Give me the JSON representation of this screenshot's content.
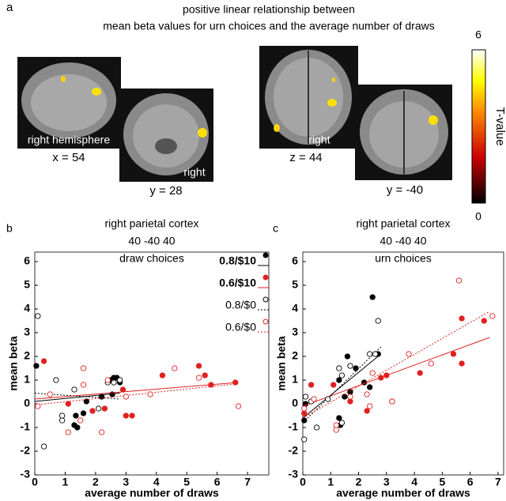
{
  "figure_a": {
    "label": "a",
    "title": [
      "positive linear relationship between",
      "mean beta values for urn choices and the average number of draws"
    ],
    "image_labels": {
      "sagittal_side": "right hemisphere",
      "sagittal_coord": "x = 54",
      "coronal1_side": "right",
      "coronal1_coord": "y = 28",
      "axial_side": "right",
      "axial_coord": "z = 44",
      "coronal2_coord": "y = -40"
    },
    "colorbar": {
      "label": "T-value",
      "lim": [
        0,
        6
      ],
      "ticks": [
        0,
        6
      ]
    }
  },
  "chart_data": [
    {
      "type": "scatter",
      "panel": "b",
      "title": [
        "right parietal cortex",
        "40 -40 40",
        "draw choices"
      ],
      "xlabel": "average number of draws",
      "ylabel": "mean beta",
      "xlim": [
        0,
        7.7
      ],
      "ylim": [
        -3,
        6.4
      ],
      "xticks": [
        0,
        1,
        2,
        3,
        4,
        5,
        6,
        7
      ],
      "yticks": [
        -3,
        -2,
        -1,
        0,
        1,
        2,
        3,
        4,
        5,
        6
      ],
      "legend": "upper right",
      "series": [
        {
          "name": "0.8/$10",
          "color": "#000000",
          "marker": "filled",
          "line": "solid",
          "x": [
            0.05,
            1.3,
            1.35,
            1.4,
            1.6,
            1.7,
            2.2,
            2.5,
            2.6,
            2.7,
            2.8,
            2.55
          ],
          "values": [
            1.6,
            -0.9,
            -0.5,
            -1.0,
            -0.4,
            0.1,
            0.3,
            1.0,
            1.1,
            1.1,
            0.9,
            0.4
          ],
          "fit": {
            "x": [
              0,
              2.8
            ],
            "y": [
              0.1,
              0.45
            ]
          }
        },
        {
          "name": "0.6/$10",
          "color": "#e02020",
          "marker": "filled",
          "line": "solid",
          "x": [
            0.3,
            1.1,
            1.9,
            2.3,
            2.9,
            3.0,
            3.2,
            4.2,
            5.4,
            5.6,
            5.8,
            6.6
          ],
          "values": [
            1.8,
            0.0,
            -0.3,
            -0.2,
            0.6,
            -0.5,
            -0.5,
            1.2,
            1.6,
            1.2,
            0.8,
            0.9
          ],
          "fit": {
            "x": [
              0,
              6.7
            ],
            "y": [
              0.2,
              0.9
            ]
          }
        },
        {
          "name": "0.8/$0",
          "color": "#000000",
          "marker": "open",
          "line": "dotted",
          "x": [
            0.1,
            0.3,
            0.7,
            0.9,
            0.9,
            1.3,
            2.1,
            2.4,
            2.6,
            2.8
          ],
          "values": [
            3.7,
            -1.8,
            1.0,
            -0.7,
            -0.5,
            0.6,
            -0.2,
            0.9,
            0.9,
            1.0
          ],
          "fit": {
            "x": [
              0,
              2.8
            ],
            "y": [
              0.45,
              0.2
            ]
          }
        },
        {
          "name": "0.6/$0",
          "color": "#e02020",
          "marker": "open",
          "line": "dotted",
          "x": [
            0.1,
            0.5,
            1.1,
            1.5,
            1.6,
            1.6,
            2.2,
            2.4,
            3.0,
            3.8,
            4.6,
            5.4,
            6.7
          ],
          "values": [
            -0.1,
            0.4,
            -1.2,
            -0.7,
            1.5,
            0.8,
            -1.2,
            1.0,
            0.3,
            0.4,
            1.5,
            1.1,
            -0.1
          ],
          "fit": {
            "x": [
              0,
              6.7
            ],
            "y": [
              -0.05,
              0.85
            ]
          }
        }
      ]
    },
    {
      "type": "scatter",
      "panel": "c",
      "title": [
        "right parietal cortex",
        "40 -40 40",
        "urn choices"
      ],
      "xlabel": "average number of draws",
      "ylabel": "mean beta",
      "xlim": [
        0,
        7.2
      ],
      "ylim": [
        -3,
        6.4
      ],
      "xticks": [
        0,
        1,
        2,
        3,
        4,
        5,
        6,
        7
      ],
      "yticks": [
        -3,
        -2,
        -1,
        0,
        1,
        2,
        3,
        4,
        5,
        6
      ],
      "series": [
        {
          "color": "#000000",
          "marker": "filled",
          "line": "solid",
          "x": [
            0.05,
            0.1,
            1.3,
            1.35,
            1.5,
            1.6,
            1.7,
            1.9,
            2.2,
            2.4,
            2.5,
            2.7,
            1.3
          ],
          "values": [
            -0.7,
            0.0,
            -0.6,
            -0.9,
            0.3,
            2.0,
            0.5,
            1.5,
            0.9,
            0.7,
            4.5,
            2.1,
            1.0
          ],
          "fit": {
            "x": [
              0,
              2.8
            ],
            "y": [
              -0.6,
              2.1
            ]
          }
        },
        {
          "color": "#e02020",
          "marker": "filled",
          "line": "solid",
          "x": [
            0.05,
            0.3,
            1.1,
            1.7,
            2.3,
            2.8,
            3.0,
            3.2,
            4.2,
            5.4,
            5.7,
            5.7,
            6.5
          ],
          "values": [
            -0.4,
            0.8,
            0.8,
            0.1,
            -0.3,
            1.1,
            1.2,
            0.1,
            1.3,
            2.1,
            1.7,
            3.6,
            3.5
          ],
          "fit": {
            "x": [
              0,
              6.7
            ],
            "y": [
              -0.1,
              2.8
            ]
          }
        },
        {
          "color": "#000000",
          "marker": "open",
          "line": "dotted",
          "x": [
            0.05,
            0.1,
            0.3,
            0.9,
            1.4,
            1.3,
            1.4,
            2.4,
            2.6,
            2.7,
            1.7,
            0.5
          ],
          "values": [
            -1.5,
            0.3,
            0.1,
            0.2,
            -0.8,
            1.5,
            1.2,
            2.1,
            2.1,
            3.5,
            1.6,
            -1.0
          ],
          "fit": {
            "x": [
              0,
              2.8
            ],
            "y": [
              -0.8,
              2.4
            ]
          }
        },
        {
          "color": "#e02020",
          "marker": "open",
          "line": "dotted",
          "x": [
            0.05,
            0.4,
            1.2,
            1.2,
            1.7,
            2.3,
            2.4,
            2.5,
            3.2,
            3.8,
            4.6,
            5.6,
            6.8
          ],
          "values": [
            -0.2,
            0.2,
            -0.9,
            -1.1,
            0.3,
            0.4,
            -0.1,
            1.3,
            0.1,
            2.1,
            1.7,
            5.2,
            3.7
          ],
          "fit": {
            "x": [
              0,
              6.7
            ],
            "y": [
              -0.6,
              3.9
            ]
          }
        }
      ]
    }
  ]
}
